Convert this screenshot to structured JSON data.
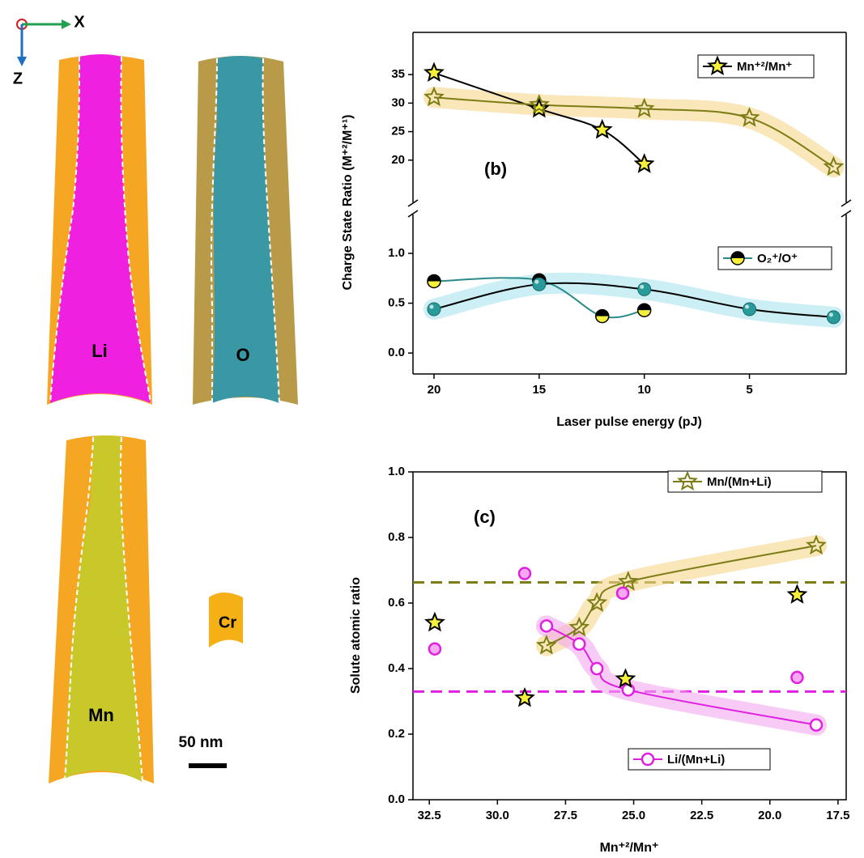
{
  "reconstruction": {
    "axis_x": "X",
    "axis_z": "Z",
    "panels": [
      "Li",
      "O",
      "Mn"
    ],
    "cr_label": "Cr",
    "scale_bar": "50 nm"
  },
  "chart_data": [
    {
      "type": "line",
      "panel_label": "(b)",
      "x_label": "Laser pulse energy (pJ)",
      "y_label": "Charge State Ratio (M⁺²/M⁺¹)",
      "xlim": [
        21,
        0.4
      ],
      "xticks": [
        20,
        15,
        10,
        5
      ],
      "ylim": [
        -0.21,
        1.39
      ],
      "yticks": [
        {
          "value": 0,
          "label": "0.0"
        },
        {
          "value": 0.5,
          "label": "0.5"
        },
        {
          "value": 1,
          "label": "1.0"
        }
      ],
      "y2lim": [
        12.6,
        42.4
      ],
      "y2ticks": [
        20,
        25,
        30,
        35
      ],
      "broken_axis": true,
      "series": [
        {
          "name": "Mn⁺²/Mn⁺",
          "axis": "y2",
          "color": "#000000",
          "marker": "star",
          "marker_fill": "#f5f03c",
          "x": [
            20,
            15,
            12,
            10
          ],
          "values": [
            35.3,
            29,
            25.3,
            19.3
          ]
        },
        {
          "axis": "y2",
          "color": "#7d7d16",
          "marker": "star",
          "marker_fill": "none",
          "band_color": "#f5d58a",
          "x": [
            20,
            15,
            10,
            5,
            1
          ],
          "values": [
            31,
            29.7,
            29,
            27.4,
            18.8
          ]
        },
        {
          "name": "O₂⁺/O⁺",
          "color": "#2a8a8a",
          "marker": "half",
          "marker_fill": "#f5f03c",
          "x": [
            20,
            15,
            12,
            10
          ],
          "values": [
            0.72,
            0.73,
            0.37,
            0.43
          ]
        },
        {
          "color": "#000000",
          "marker": "sphere",
          "marker_fill": "#2a9b9b",
          "band_color": "#a8e4ef",
          "x": [
            20,
            15,
            10,
            5,
            1
          ],
          "values": [
            0.44,
            0.69,
            0.64,
            0.44,
            0.36
          ]
        }
      ]
    },
    {
      "type": "line",
      "panel_label": "(c)",
      "x_label": "Mn⁺²/Mn⁺",
      "y_label": "Solute atomic ratio",
      "xlim": [
        33.1,
        17.2
      ],
      "xticks": [
        32.5,
        {
          "value": 30,
          "label": "30.0"
        },
        27.5,
        {
          "value": 25,
          "label": "25.0"
        },
        22.5,
        {
          "value": 20,
          "label": "20.0"
        },
        17.5
      ],
      "ylim": [
        0,
        1
      ],
      "yticks": [
        {
          "value": 0,
          "label": "0.0"
        },
        0.2,
        0.4,
        0.6,
        0.8,
        {
          "value": 1,
          "label": "1.0"
        }
      ],
      "reference_lines": [
        {
          "value": 0.663,
          "color": "#7d7d16"
        },
        {
          "value": 0.33,
          "color": "#e020e0"
        }
      ],
      "series": [
        {
          "name": "Mn/(Mn+Li)",
          "color": "#7d7d16",
          "marker": "star",
          "marker_fill": "none",
          "band_color": "#f5d58a",
          "x": [
            28.2,
            27,
            26.35,
            25.2,
            18.3
          ],
          "values": [
            0.47,
            0.525,
            0.6,
            0.665,
            0.775
          ]
        },
        {
          "name": "Li/(Mn+Li)",
          "color": "#e020e0",
          "marker": "circle",
          "marker_fill": "none",
          "band_color": "#f4a8f0",
          "x": [
            28.2,
            27,
            26.35,
            25.2,
            18.3
          ],
          "values": [
            0.53,
            0.475,
            0.4,
            0.335,
            0.228
          ]
        },
        {
          "color": "#000000",
          "marker": "star",
          "marker_fill": "#f5f03c",
          "line": false,
          "x": [
            32.3,
            29,
            25.3,
            19
          ],
          "values": [
            0.54,
            0.31,
            0.368,
            0.625
          ]
        },
        {
          "color": "#e020e0",
          "marker": "circle",
          "marker_fill": "#f7a8f2",
          "line": false,
          "x": [
            32.3,
            29,
            25.4,
            19
          ],
          "values": [
            0.46,
            0.69,
            0.63,
            0.373
          ]
        }
      ]
    }
  ]
}
